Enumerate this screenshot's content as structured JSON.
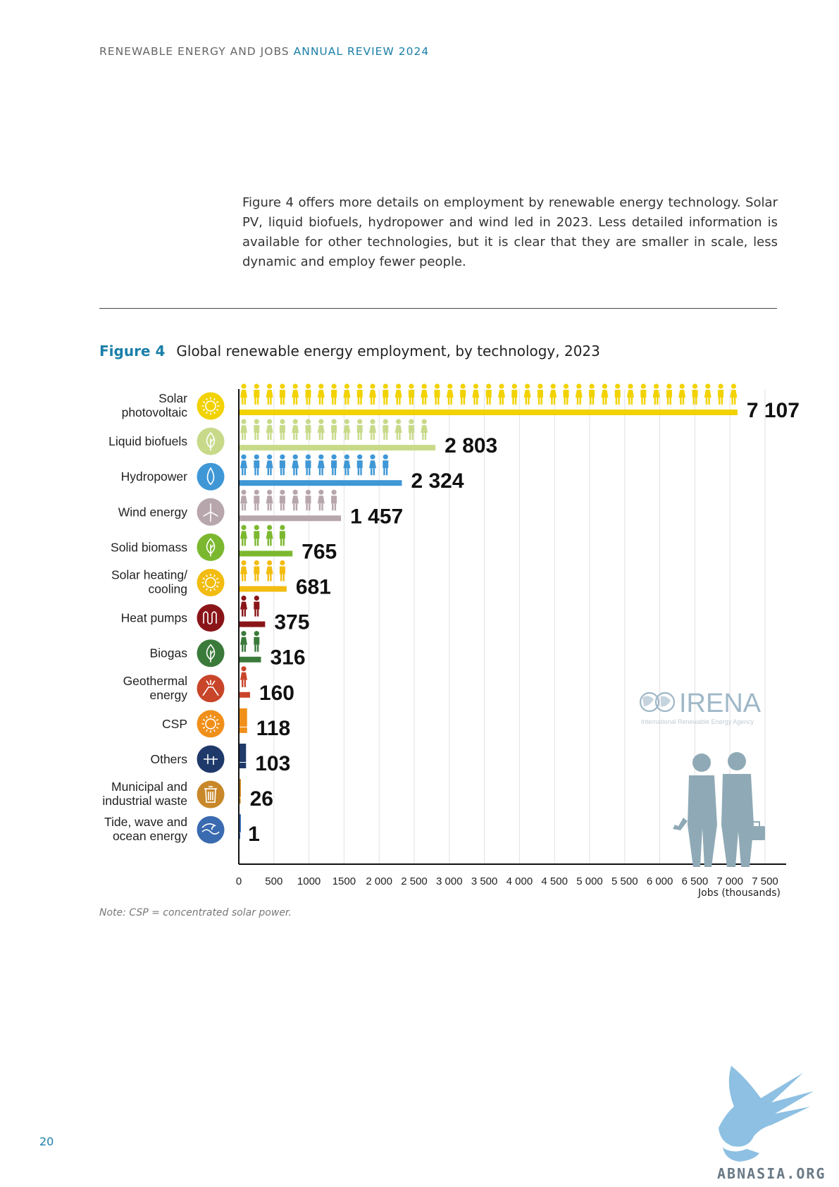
{
  "header": {
    "prefix": "RENEWABLE ENERGY AND JOBS",
    "highlight": "ANNUAL REVIEW 2024"
  },
  "intro_text": "Figure 4 offers more details on employment by renewable energy technology. Solar PV, liquid biofuels, hydropower and wind led in 2023. Less detailed information is available for other technologies, but it is clear that they are smaller in scale, less dynamic and employ fewer people.",
  "figure": {
    "number": "Figure 4",
    "title": "Global renewable energy employment, by technology, 2023"
  },
  "note": "Note: CSP = concentrated solar power.",
  "page_number": "20",
  "logo": {
    "text": "IRENA",
    "subtext": "International Renewable Energy Agency"
  },
  "watermark": {
    "text": "ABNASIA.ORG"
  },
  "chart_data": {
    "type": "bar",
    "orientation": "horizontal",
    "title": "Global renewable energy employment, by technology, 2023",
    "xlabel": "Jobs (thousands)",
    "xlim": [
      0,
      7500
    ],
    "xticks": [
      0,
      500,
      1000,
      1500,
      2000,
      2500,
      3000,
      3500,
      4000,
      4500,
      5000,
      5500,
      6000,
      6500,
      7000,
      7500
    ],
    "xtick_labels": [
      "0",
      "500",
      "1000",
      "1500",
      "2 000",
      "2 500",
      "3 000",
      "3 500",
      "4 000",
      "4 500",
      "5 000",
      "5 500",
      "6 000",
      "6 500",
      "7 000",
      "7 500"
    ],
    "grid": "vertical",
    "categories": [
      {
        "label": [
          "Solar",
          "photovoltaic"
        ],
        "value": 7107,
        "value_label": "7 107",
        "color": "#f2d200",
        "icon": "sun-icon"
      },
      {
        "label": [
          "Liquid biofuels"
        ],
        "value": 2803,
        "value_label": "2 803",
        "color": "#c8da8a",
        "icon": "leaf-drop-icon"
      },
      {
        "label": [
          "Hydropower"
        ],
        "value": 2324,
        "value_label": "2 324",
        "color": "#3f97d6",
        "icon": "water-drop-icon"
      },
      {
        "label": [
          "Wind energy"
        ],
        "value": 1457,
        "value_label": "1 457",
        "color": "#b8a6ad",
        "icon": "wind-turbine-icon"
      },
      {
        "label": [
          "Solid biomass"
        ],
        "value": 765,
        "value_label": "765",
        "color": "#7cb82f",
        "icon": "leaf-icon"
      },
      {
        "label": [
          "Solar heating/",
          "cooling"
        ],
        "value": 681,
        "value_label": "681",
        "color": "#f2bc10",
        "icon": "sun-icon"
      },
      {
        "label": [
          "Heat pumps"
        ],
        "value": 375,
        "value_label": "375",
        "color": "#8a1518",
        "icon": "heat-wave-icon"
      },
      {
        "label": [
          "Biogas"
        ],
        "value": 316,
        "value_label": "316",
        "color": "#3a7a3a",
        "icon": "leaf-icon"
      },
      {
        "label": [
          "Geothermal",
          "energy"
        ],
        "value": 160,
        "value_label": "160",
        "color": "#c8452a",
        "icon": "volcano-icon"
      },
      {
        "label": [
          "CSP"
        ],
        "value": 118,
        "value_label": "118",
        "color": "#f0901a",
        "icon": "sun-icon"
      },
      {
        "label": [
          "Others"
        ],
        "value": 103,
        "value_label": "103",
        "color": "#1f3a6a",
        "icon": "plus-icon"
      },
      {
        "label": [
          "Municipal and",
          "industrial waste"
        ],
        "value": 26,
        "value_label": "26",
        "color": "#c8882a",
        "icon": "trash-bin-icon"
      },
      {
        "label": [
          "Tide, wave and",
          "ocean energy"
        ],
        "value": 1,
        "value_label": "1",
        "color": "#3a6ab0",
        "icon": "wave-icon"
      }
    ]
  }
}
